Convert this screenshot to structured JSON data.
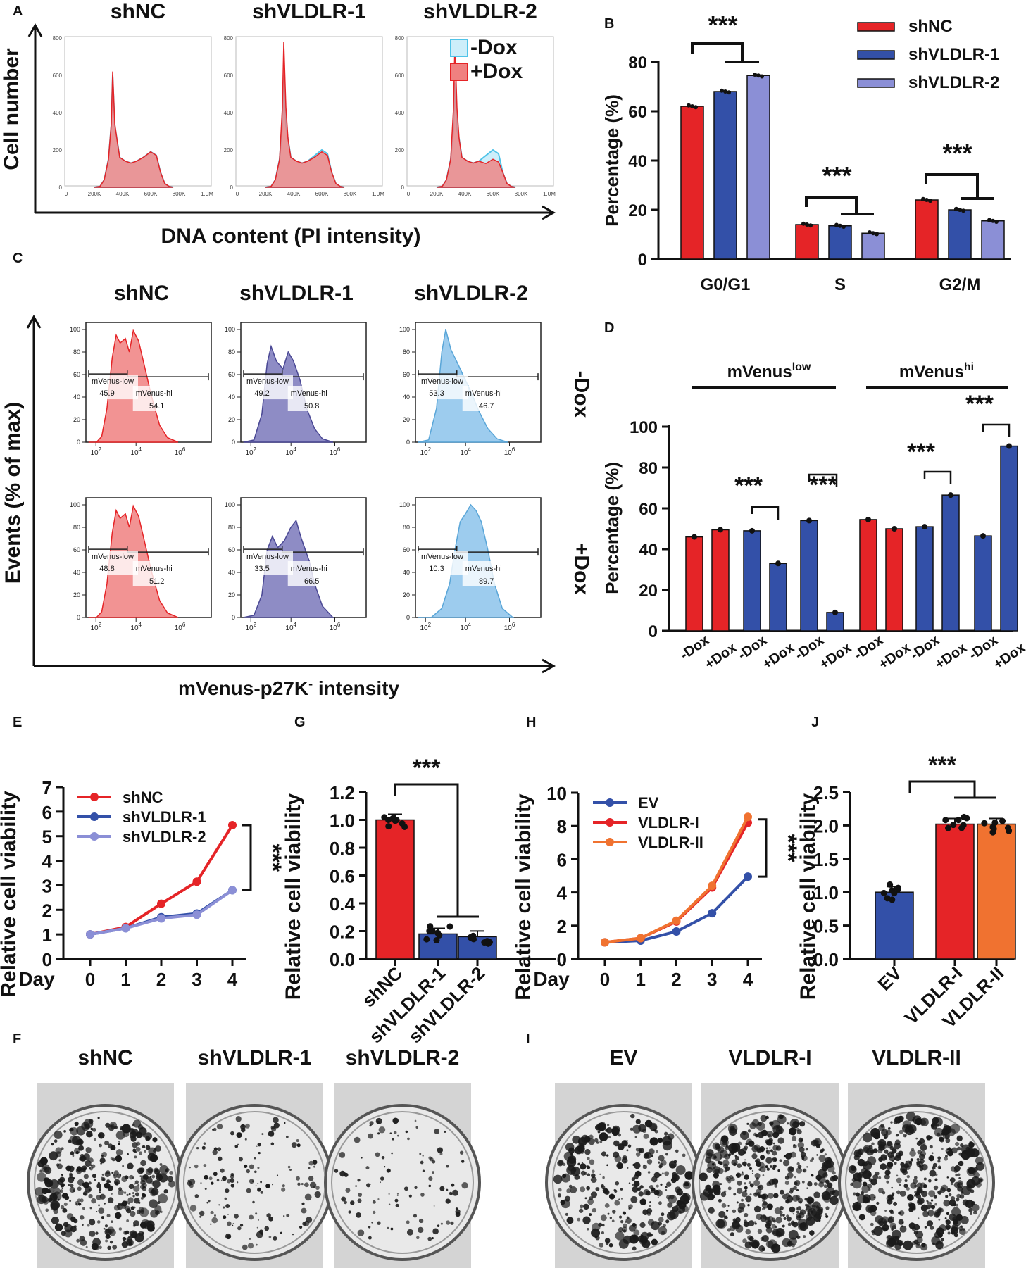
{
  "colors": {
    "red": "#e52427",
    "blue": "#3350a8",
    "lavender": "#8b8fd6",
    "orange": "#f07230",
    "cyan": "#4fc3e8",
    "cyan_fill": "#cdeefa",
    "pink": "#f08080",
    "purple_fill": "#7a78bb",
    "lightblue_fill": "#8cc3eb",
    "grey": "#bbbbbb"
  },
  "chart_data": [
    {
      "panel": "A",
      "type": "histogram",
      "groups": [
        "shNC",
        "shVLDLR-1",
        "shVLDLR-2"
      ],
      "legend": [
        "-Dox",
        "+Dox"
      ],
      "ylabel": "Cell number",
      "xlabel": "DNA content (PI intensity)",
      "xticks": [
        "0",
        "200K",
        "400K",
        "600K",
        "800K",
        "1.0M"
      ],
      "yticks": [
        "0",
        "200",
        "400",
        "600",
        "800"
      ],
      "peak_g1_minus_dox": [
        600,
        600,
        560
      ],
      "peak_g1_plus_dox": [
        620,
        780,
        770
      ],
      "peak_g2_minus_dox": [
        190,
        200,
        200
      ],
      "peak_g2_plus_dox": [
        190,
        190,
        150
      ]
    },
    {
      "panel": "B",
      "type": "bar",
      "categories": [
        "G0/G1",
        "S",
        "G2/M"
      ],
      "series": [
        {
          "name": "shNC",
          "values": [
            62,
            14,
            24
          ]
        },
        {
          "name": "shVLDLR-1",
          "values": [
            68,
            13.5,
            20
          ]
        },
        {
          "name": "shVLDLR-2",
          "values": [
            74.5,
            10.5,
            15.5
          ]
        }
      ],
      "ylabel": "Percentage (%)",
      "ylim": [
        0,
        80
      ],
      "yticks": [
        "0",
        "20",
        "40",
        "60",
        "80"
      ],
      "annotations": [
        "***",
        "***",
        "***"
      ]
    },
    {
      "panel": "C",
      "type": "histogram-gated",
      "groups": [
        "shNC",
        "shVLDLR-1",
        "shVLDLR-2"
      ],
      "rows": [
        "-Dox",
        "+Dox"
      ],
      "ylabel": "Events (% of max)",
      "xlabel_main": "mVenus-p27K",
      "xlabel_sup": "-",
      "xlabel_tail": " intensity",
      "yticks": [
        "0",
        "20",
        "40",
        "60",
        "80",
        "100"
      ],
      "xticks": [
        "10",
        "10",
        "10"
      ],
      "xtick_sups": [
        "2",
        "4",
        "6"
      ],
      "gate_low_label": "mVenus-low",
      "gate_hi_label": "mVenus-hi",
      "gates": [
        [
          {
            "low": "45.9",
            "hi": "54.1"
          },
          {
            "low": "49.2",
            "hi": "50.8"
          },
          {
            "low": "53.3",
            "hi": "46.7"
          }
        ],
        [
          {
            "low": "48.8",
            "hi": "51.2"
          },
          {
            "low": "33.5",
            "hi": "66.5"
          },
          {
            "low": "10.3",
            "hi": "89.7"
          }
        ]
      ]
    },
    {
      "panel": "D",
      "type": "bar",
      "categories": [
        "-Dox",
        "+Dox"
      ],
      "group_headers": [
        "mVenus",
        "mVenus"
      ],
      "group_header_sups": [
        "low",
        "hi"
      ],
      "series": [
        {
          "name": "mVenus-low shNC",
          "values": [
            46,
            49.5
          ]
        },
        {
          "name": "mVenus-low shVLDLR-1",
          "values": [
            49,
            33
          ]
        },
        {
          "name": "mVenus-low shVLDLR-2",
          "values": [
            54,
            9
          ]
        },
        {
          "name": "mVenus-hi shNC",
          "values": [
            54.5,
            50
          ]
        },
        {
          "name": "mVenus-hi shVLDLR-1",
          "values": [
            51,
            66.5
          ]
        },
        {
          "name": "mVenus-hi shVLDLR-2",
          "values": [
            46.5,
            90.5
          ]
        }
      ],
      "ylabel": "Percentage (%)",
      "ylim": [
        0,
        100
      ],
      "yticks": [
        "0",
        "20",
        "40",
        "60",
        "80",
        "100"
      ],
      "annotations": [
        "***",
        "***",
        "***",
        "***"
      ]
    },
    {
      "panel": "E",
      "type": "line",
      "x": [
        0,
        1,
        2,
        3,
        4
      ],
      "xticks": [
        "0",
        "1",
        "2",
        "3",
        "4"
      ],
      "xprefix": "Day",
      "series": [
        {
          "name": "shNC",
          "values": [
            1.0,
            1.3,
            2.25,
            3.15,
            5.45
          ]
        },
        {
          "name": "shVLDLR-1",
          "values": [
            1.0,
            1.25,
            1.7,
            1.85,
            2.8
          ]
        },
        {
          "name": "shVLDLR-2",
          "values": [
            1.0,
            1.25,
            1.65,
            1.8,
            2.8
          ]
        }
      ],
      "ylabel": "Relative cell viability",
      "ylim": [
        0,
        7
      ],
      "yticks": [
        "0",
        "1",
        "2",
        "3",
        "4",
        "5",
        "6",
        "7"
      ],
      "annotation": "***"
    },
    {
      "panel": "G",
      "type": "bar",
      "categories": [
        "shNC",
        "shVLDLR-1",
        "shVLDLR-2"
      ],
      "values": [
        1.0,
        0.18,
        0.16
      ],
      "ylabel": "Relative cell viability",
      "ylim": [
        0,
        1.2
      ],
      "yticks": [
        "0.0",
        "0.2",
        "0.4",
        "0.6",
        "0.8",
        "1.0",
        "1.2"
      ],
      "annotation": "***"
    },
    {
      "panel": "H",
      "type": "line",
      "x": [
        0,
        1,
        2,
        3,
        4
      ],
      "xticks": [
        "0",
        "1",
        "2",
        "3",
        "4"
      ],
      "xprefix": "Day",
      "series": [
        {
          "name": "EV",
          "values": [
            1.0,
            1.1,
            1.65,
            2.75,
            4.95
          ]
        },
        {
          "name": "VLDLR-I",
          "values": [
            1.0,
            1.25,
            2.25,
            4.3,
            8.2
          ]
        },
        {
          "name": "VLDLR-II",
          "values": [
            1.0,
            1.25,
            2.3,
            4.4,
            8.55
          ]
        }
      ],
      "ylabel": "Relative cell viability",
      "ylim": [
        0,
        10
      ],
      "yticks": [
        "0",
        "2",
        "4",
        "6",
        "8",
        "10"
      ],
      "annotation": "***"
    },
    {
      "panel": "J",
      "type": "bar",
      "categories": [
        "EV",
        "VLDLR-I",
        "VLDLR-II"
      ],
      "values": [
        1.0,
        2.02,
        2.02
      ],
      "ylabel": "Relative cell viability",
      "ylim": [
        0,
        2.5
      ],
      "yticks": [
        "0.0",
        "0.5",
        "1.0",
        "1.5",
        "2.0",
        "2.5"
      ],
      "annotation": "***"
    },
    {
      "panel": "F",
      "type": "image-plates",
      "labels": [
        "shNC",
        "shVLDLR-1",
        "shVLDLR-2"
      ],
      "density": [
        0.9,
        0.35,
        0.25
      ]
    },
    {
      "panel": "I",
      "type": "image-plates",
      "labels": [
        "EV",
        "VLDLR-I",
        "VLDLR-II"
      ],
      "density": [
        0.7,
        1.0,
        1.0
      ]
    }
  ],
  "panel_letters": [
    "A",
    "B",
    "C",
    "D",
    "E",
    "F",
    "G",
    "H",
    "I",
    "J"
  ]
}
